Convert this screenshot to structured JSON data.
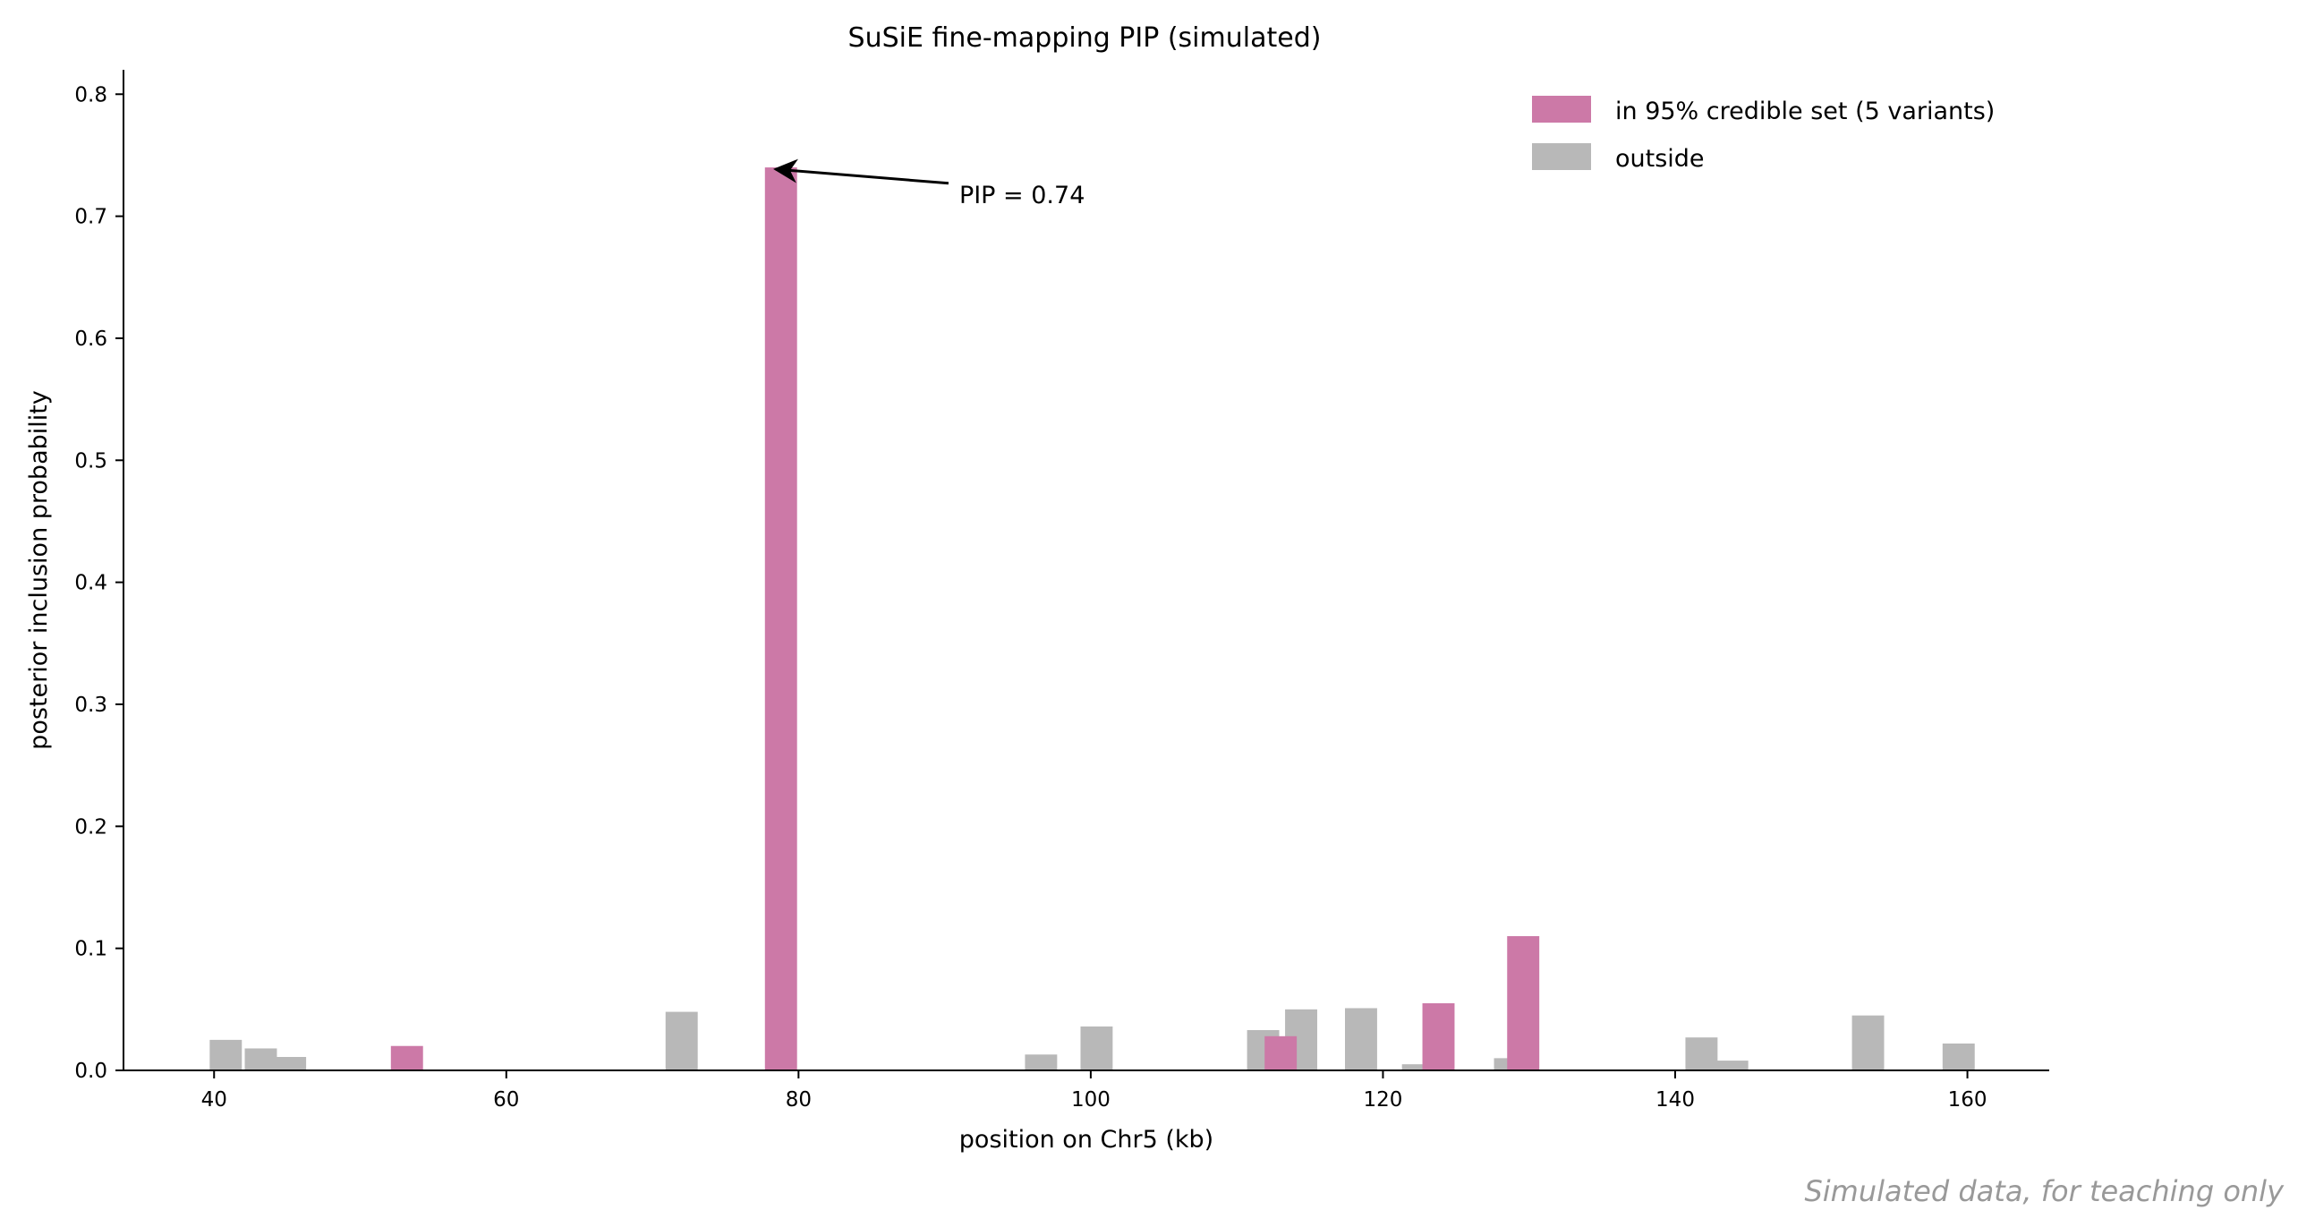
{
  "chart_data": {
    "type": "bar",
    "title": "SuSiE fine-mapping PIP (simulated)",
    "xlabel": "position on Chr5 (kb)",
    "ylabel": "posterior inclusion probability",
    "xlim": [
      33.8,
      165.6
    ],
    "ylim": [
      0,
      0.82
    ],
    "xticks": [
      40,
      60,
      80,
      100,
      120,
      140,
      160
    ],
    "yticks": [
      0.0,
      0.1,
      0.2,
      0.3,
      0.4,
      0.5,
      0.6,
      0.7,
      0.8
    ],
    "grid": false,
    "legend_position": "top-right",
    "bar_width_kb": 2.2,
    "series": [
      {
        "name": "in 95% credible set (5 variants)",
        "color": "#cc79a7",
        "points": [
          {
            "x": 53.2,
            "y": 0.02
          },
          {
            "x": 78.8,
            "y": 0.74
          },
          {
            "x": 113.0,
            "y": 0.028
          },
          {
            "x": 123.8,
            "y": 0.055
          },
          {
            "x": 129.6,
            "y": 0.11
          }
        ]
      },
      {
        "name": "outside",
        "color": "#b8b8b8",
        "points": [
          {
            "x": 40.8,
            "y": 0.025
          },
          {
            "x": 43.2,
            "y": 0.018
          },
          {
            "x": 45.2,
            "y": 0.011
          },
          {
            "x": 72.0,
            "y": 0.048
          },
          {
            "x": 96.6,
            "y": 0.013
          },
          {
            "x": 100.4,
            "y": 0.036
          },
          {
            "x": 111.8,
            "y": 0.033
          },
          {
            "x": 114.4,
            "y": 0.05
          },
          {
            "x": 118.5,
            "y": 0.051
          },
          {
            "x": 122.4,
            "y": 0.005
          },
          {
            "x": 128.7,
            "y": 0.01
          },
          {
            "x": 141.8,
            "y": 0.027
          },
          {
            "x": 143.9,
            "y": 0.008
          },
          {
            "x": 153.2,
            "y": 0.045
          },
          {
            "x": 159.4,
            "y": 0.022
          }
        ]
      }
    ],
    "annotation": {
      "text": "PIP = 0.74",
      "target": {
        "x": 78.8,
        "y": 0.74
      },
      "text_anchor_data": {
        "x": 91.0,
        "y": 0.705
      }
    }
  },
  "footer": {
    "note": "Simulated data, for teaching only"
  }
}
